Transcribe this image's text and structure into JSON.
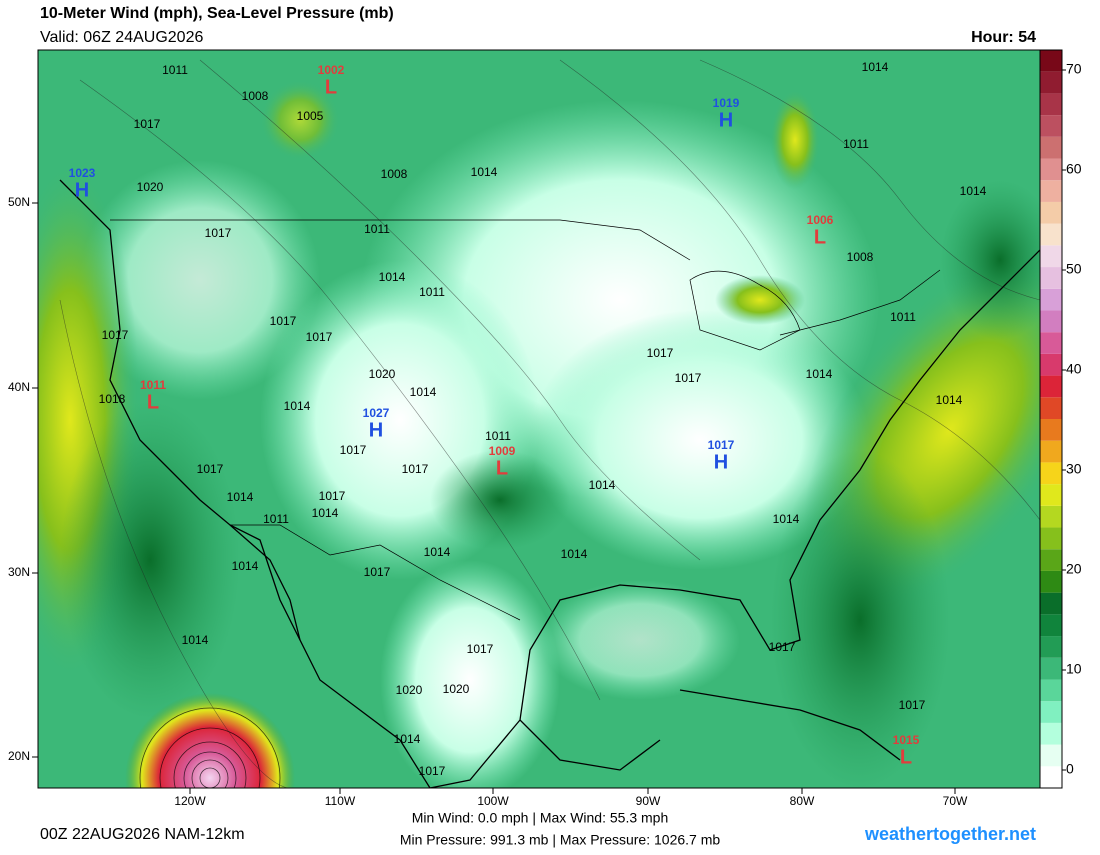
{
  "header": {
    "title": "10-Meter Wind (mph), Sea-Level Pressure (mb)",
    "valid": "Valid: 06Z 24AUG2026",
    "hour": "Hour: 54"
  },
  "colorbar": {
    "ticks": [
      0,
      10,
      20,
      30,
      40,
      50,
      60,
      70
    ],
    "colors": [
      "#ffffff",
      "#e6fff2",
      "#b3ffdd",
      "#80f0c0",
      "#5ad69a",
      "#3cb878",
      "#229c55",
      "#10843c",
      "#0a6e2a",
      "#2e8a14",
      "#5aa618",
      "#86c01c",
      "#b4d820",
      "#e0e81c",
      "#f6d41a",
      "#f0a81e",
      "#e87a1e",
      "#e04826",
      "#dc2438",
      "#d83a6c",
      "#d85a98",
      "#d27ec0",
      "#d8a0d8",
      "#e6c0e0",
      "#f0d8e8",
      "#f8e2cc",
      "#f4cca8",
      "#eeb0a0",
      "#e09090",
      "#cc7070",
      "#bc5060",
      "#a83448",
      "#901c30",
      "#780818"
    ]
  },
  "axes": {
    "lon": [
      "120W",
      "110W",
      "100W",
      "90W",
      "80W",
      "70W"
    ],
    "lat": [
      "20N",
      "30N",
      "40N",
      "50N"
    ]
  },
  "centers": [
    {
      "letter": "L",
      "pressure": "1002",
      "color": "#e23c3c"
    },
    {
      "letter": "H",
      "pressure": "1019",
      "color": "#2050e0"
    },
    {
      "letter": "H",
      "pressure": "1023",
      "color": "#2050e0"
    },
    {
      "letter": "L",
      "pressure": "1006",
      "color": "#e23c3c"
    },
    {
      "letter": "L",
      "pressure": "1011",
      "color": "#e23c3c"
    },
    {
      "letter": "H",
      "pressure": "1027",
      "color": "#2050e0"
    },
    {
      "letter": "L",
      "pressure": "1009",
      "color": "#e23c3c"
    },
    {
      "letter": "H",
      "pressure": "1017",
      "color": "#2050e0"
    },
    {
      "letter": "L",
      "pressure": "1015",
      "color": "#e23c3c"
    }
  ],
  "isobar_labels": [
    "1011",
    "1008",
    "1017",
    "1005",
    "1020",
    "1008",
    "1014",
    "1014",
    "1011",
    "1014",
    "1008",
    "1017",
    "1011",
    "1014",
    "1011",
    "1017",
    "1017",
    "1017",
    "1011",
    "1017",
    "1017",
    "1014",
    "1018",
    "1020",
    "1014",
    "1014",
    "1014",
    "1011",
    "1017",
    "1017",
    "1017",
    "1014",
    "1017",
    "1014",
    "1011",
    "1014",
    "1014",
    "1014",
    "1014",
    "1014",
    "1017",
    "1014",
    "1017",
    "1017",
    "1020",
    "1020",
    "1014",
    "1017",
    "1017"
  ],
  "footer": {
    "run": "00Z 22AUG2026 NAM-12km",
    "wind_stats": "Min Wind:  0.0 mph | Max Wind: 55.3 mph",
    "pressure_stats": "Min Pressure: 991.3 mb | Max Pressure: 1026.7 mb",
    "site": "weathertogether.net"
  }
}
